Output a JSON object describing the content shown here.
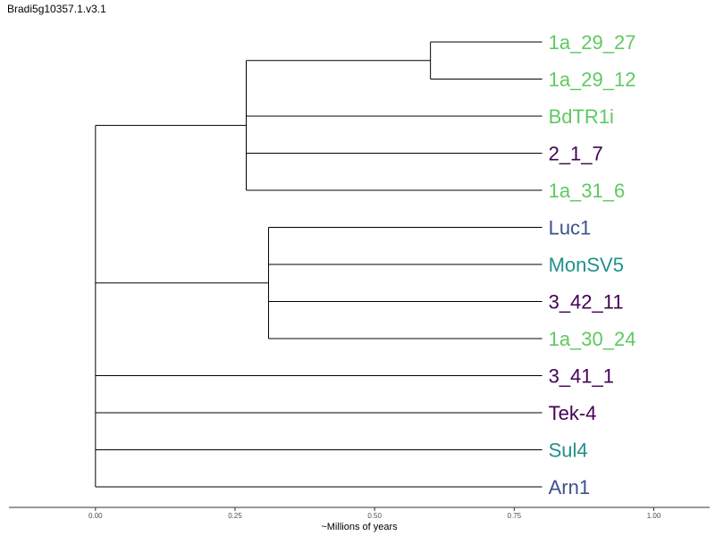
{
  "chart_data": {
    "type": "tree",
    "title": "Bradi5g10357.1.v3.1",
    "xlabel": "~Millions of years",
    "xlim": [
      -0.155,
      1.1
    ],
    "xticks": [
      0.0,
      0.25,
      0.5,
      0.75,
      1.0
    ],
    "xtick_labels": [
      "0.00",
      "0.25",
      "0.50",
      "0.75",
      "1.00"
    ],
    "grid": false,
    "leaves": [
      {
        "name": "1a_29_27",
        "color": "#5ec962"
      },
      {
        "name": "1a_29_12",
        "color": "#5ec962"
      },
      {
        "name": "BdTR1i",
        "color": "#5ec962"
      },
      {
        "name": "2_1_7",
        "color": "#440154"
      },
      {
        "name": "1a_31_6",
        "color": "#5ec962"
      },
      {
        "name": "Luc1",
        "color": "#3b528b"
      },
      {
        "name": "MonSV5",
        "color": "#21918c"
      },
      {
        "name": "3_42_11",
        "color": "#440154"
      },
      {
        "name": "1a_30_24",
        "color": "#5ec962"
      },
      {
        "name": "3_41_1",
        "color": "#440154"
      },
      {
        "name": "Tek-4",
        "color": "#440154"
      },
      {
        "name": "Sul4",
        "color": "#21918c"
      },
      {
        "name": "Arn1",
        "color": "#3b528b"
      }
    ],
    "leaf_x": 0.8,
    "tree": {
      "x": 0.0,
      "children": [
        {
          "x": 0.27,
          "children": [
            {
              "x": 0.6,
              "children": [
                {
                  "leaf": 0
                },
                {
                  "leaf": 1
                }
              ]
            },
            {
              "leaf": 2
            },
            {
              "leaf": 3
            },
            {
              "leaf": 4
            }
          ]
        },
        {
          "x": 0.31,
          "children": [
            {
              "leaf": 5
            },
            {
              "leaf": 6
            },
            {
              "leaf": 7
            },
            {
              "leaf": 8
            }
          ]
        },
        {
          "leaf": 9
        },
        {
          "leaf": 10
        },
        {
          "leaf": 11
        },
        {
          "leaf": 12
        }
      ]
    }
  }
}
